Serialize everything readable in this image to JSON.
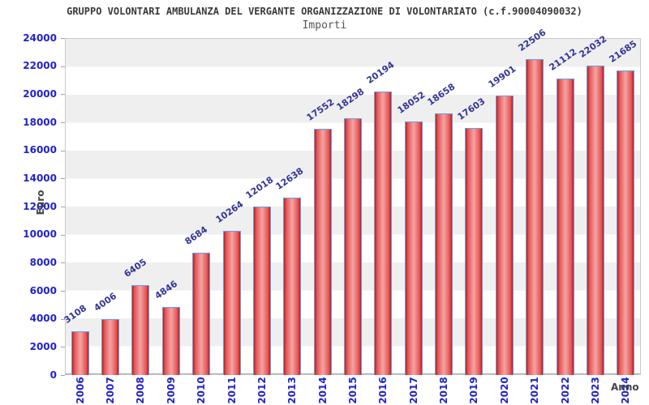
{
  "header": {
    "title": "GRUPPO VOLONTARI AMBULANZA DEL VERGANTE ORGANIZZAZIONE DI VOLONTARIATO (c.f.90004090032)",
    "subtitle": "Importi"
  },
  "axes": {
    "y_title": "Euro",
    "x_title": "Anno"
  },
  "chart_data": {
    "type": "bar",
    "title": "GRUPPO VOLONTARI AMBULANZA DEL VERGANTE ORGANIZZAZIONE DI VOLONTARIATO (c.f.90004090032)",
    "subtitle": "Importi",
    "xlabel": "Anno",
    "ylabel": "Euro",
    "categories": [
      "2006",
      "2007",
      "2008",
      "2009",
      "2010",
      "2011",
      "2012",
      "2013",
      "2014",
      "2015",
      "2016",
      "2017",
      "2018",
      "2019",
      "2020",
      "2021",
      "2022",
      "2023",
      "2024"
    ],
    "values": [
      3108,
      4006,
      6405,
      4846,
      8684,
      10264,
      12018,
      12638,
      17552,
      18298,
      20194,
      18052,
      18658,
      17603,
      19901,
      22506,
      21112,
      22032,
      21685
    ],
    "ylim": [
      0,
      24000
    ],
    "y_tick_step": 2000,
    "grid": "alternating-horizontal-bands",
    "legend_position": "none",
    "colors": {
      "bar_edge": "#c41a1a",
      "bar_center": "#f4a0a0",
      "bar_border": "#64a0e0",
      "axis_tick_label": "#2222cc",
      "value_label": "#333399",
      "band_gray": "#efefef",
      "band_white": "#ffffff",
      "title_color": "#3a3a3a",
      "subtitle_color": "#555555",
      "axis_title_color": "#444444"
    }
  }
}
